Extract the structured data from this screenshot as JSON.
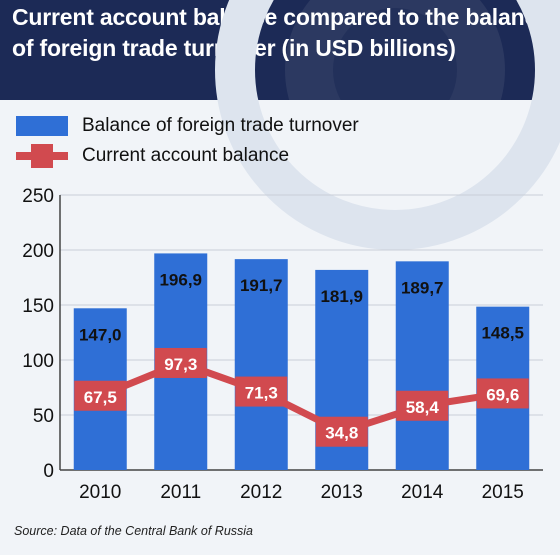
{
  "title": "Current account balance compared to the balance of foreign trade turnover (in USD billions)",
  "source": "Source: Data of the Central Bank of Russia",
  "colors": {
    "header": "#1c2a56",
    "bar": "#2f6fd6",
    "line": "#d14a4f",
    "background": "#f1f4f8"
  },
  "chart_data": {
    "type": "bar",
    "title": "Current account balance compared to the balance of foreign trade turnover (in USD billions)",
    "categories": [
      "2010",
      "2011",
      "2012",
      "2013",
      "2014",
      "2015"
    ],
    "ylim": [
      0,
      250
    ],
    "yticks": [
      0,
      50,
      100,
      150,
      200,
      250
    ],
    "grid": true,
    "legend_position": "top-left",
    "series": [
      {
        "name": "Balance of foreign trade turnover",
        "type": "bar",
        "values": [
          147.0,
          196.9,
          191.7,
          181.9,
          189.7,
          148.5
        ],
        "labels": [
          "147,0",
          "196,9",
          "191,7",
          "181,9",
          "189,7",
          "148,5"
        ]
      },
      {
        "name": "Current account balance",
        "type": "line",
        "values": [
          67.5,
          97.3,
          71.3,
          34.8,
          58.4,
          69.6
        ],
        "labels": [
          "67,5",
          "97,3",
          "71,3",
          "34,8",
          "58,4",
          "69,6"
        ]
      }
    ]
  }
}
